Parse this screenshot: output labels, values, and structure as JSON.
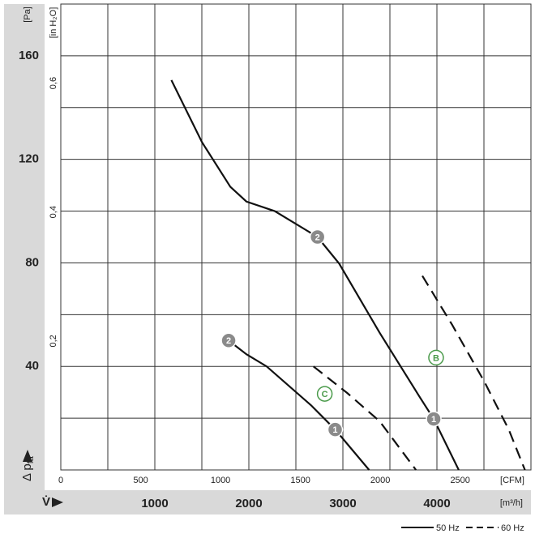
{
  "chart_data": {
    "type": "line",
    "y_label": "[Pa]",
    "y2_label": "[in H₂O]",
    "y_axis_title": "Δ p",
    "y_axis_sub": "fa",
    "x_axis_title": "V̇",
    "x_label": "[m³/h]",
    "x2_label": "[CFM]",
    "xlim": [
      0,
      5000
    ],
    "xticks": [
      1000,
      2000,
      3000,
      4000
    ],
    "xgrid": [
      500,
      1000,
      1500,
      2000,
      2500,
      3000,
      3500,
      4000,
      4500
    ],
    "x2lim": [
      0,
      2943
    ],
    "x2ticks": [
      0,
      500,
      1000,
      1500,
      2000,
      2500
    ],
    "ylim": [
      0,
      180
    ],
    "yticks": [
      40,
      80,
      120,
      160
    ],
    "ygrid": [
      20,
      40,
      60,
      80,
      100,
      120,
      140,
      160
    ],
    "y2lim": [
      0,
      0.7226
    ],
    "y2ticks": [
      {
        "value": 0.2,
        "label": "0,2"
      },
      {
        "value": 0.4,
        "label": "0,4"
      },
      {
        "value": 0.6,
        "label": "0,6"
      }
    ],
    "legend": [
      {
        "name": "50 Hz",
        "style": "solid"
      },
      {
        "name": "60 Hz",
        "style": "dashed"
      }
    ],
    "curves": [
      {
        "style": "solid",
        "color": "#111",
        "x": [
          1176,
          1502,
          1803,
          1974,
          2275,
          2730,
          2961,
          3391,
          3820,
          3966,
          4232
        ],
        "values": [
          150.6,
          126.6,
          109.4,
          103.7,
          100,
          90,
          79.7,
          53,
          28,
          19.7,
          0
        ]
      },
      {
        "style": "solid",
        "color": "#111",
        "x": [
          1785,
          1974,
          2189,
          2661,
          2918,
          3279
        ],
        "values": [
          50,
          44.7,
          40,
          25,
          15.6,
          0
        ]
      },
      {
        "style": "dashed",
        "color": "#111",
        "x": [
          2687,
          3047,
          3391,
          3777
        ],
        "values": [
          40,
          29.7,
          18.8,
          0
        ]
      },
      {
        "style": "dashed",
        "color": "#111",
        "x": [
          3845,
          4163,
          4506,
          4764,
          4936
        ],
        "values": [
          75,
          56,
          34,
          15.6,
          0
        ]
      }
    ],
    "markers": [
      {
        "label": "2",
        "x": 2730,
        "y": 90,
        "kind": "filled",
        "color": "#8a8a8a"
      },
      {
        "label": "1",
        "x": 3966,
        "y": 19.7,
        "kind": "filled",
        "color": "#8a8a8a"
      },
      {
        "label": "2",
        "x": 1785,
        "y": 50,
        "kind": "filled",
        "color": "#8a8a8a"
      },
      {
        "label": "1",
        "x": 2918,
        "y": 15.6,
        "kind": "filled",
        "color": "#8a8a8a"
      },
      {
        "label": "C",
        "x": 2807,
        "y": 29.4,
        "kind": "outline",
        "color": "#4a9a4a"
      },
      {
        "label": "B",
        "x": 3991,
        "y": 43.4,
        "kind": "outline",
        "color": "#4a9a4a"
      }
    ]
  }
}
